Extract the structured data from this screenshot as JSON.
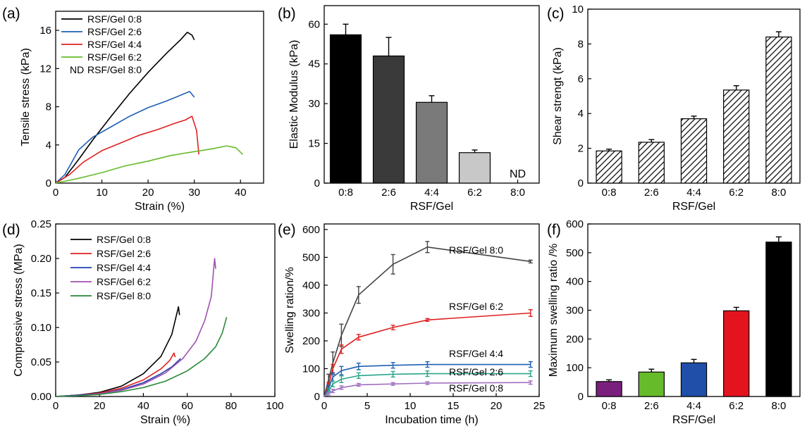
{
  "chart_data": [
    {
      "panel": "(a)",
      "type": "line",
      "xlabel": "Strain (%)",
      "ylabel": "Tensile stress (kPa)",
      "xlim": [
        0,
        45
      ],
      "ylim": [
        0,
        18
      ],
      "xticks": [
        0,
        10,
        20,
        30,
        40
      ],
      "yticks": [
        0,
        4,
        8,
        12,
        16
      ],
      "legend_position": "top-left",
      "nd_note": {
        "marker": "ND",
        "label": "RSF/Gel 8:0"
      },
      "series": [
        {
          "name": "RSF/Gel 0:8",
          "color": "#000000",
          "x": [
            0,
            2,
            5,
            8,
            12,
            16,
            20,
            24,
            27,
            28.5,
            29.5,
            30
          ],
          "y": [
            0,
            0.6,
            2.5,
            4.5,
            7.0,
            9.4,
            11.6,
            13.6,
            15.0,
            15.8,
            15.5,
            15.0
          ]
        },
        {
          "name": "RSF/Gel 2:6",
          "color": "#1f5fb5",
          "x": [
            0,
            2,
            5,
            8,
            12,
            16,
            20,
            24,
            27,
            29,
            30
          ],
          "y": [
            0,
            0.9,
            3.5,
            4.8,
            5.9,
            7.0,
            7.9,
            8.6,
            9.2,
            9.6,
            9.0
          ]
        },
        {
          "name": "RSF/Gel 4:4",
          "color": "#e02020",
          "x": [
            0,
            3,
            6,
            10,
            14,
            18,
            22,
            26,
            28,
            29.5,
            30.5,
            31
          ],
          "y": [
            0,
            0.9,
            2.2,
            3.4,
            4.2,
            5.0,
            5.6,
            6.3,
            6.6,
            7.0,
            5.5,
            3.0
          ]
        },
        {
          "name": "RSF/Gel 6:2",
          "color": "#66bb2a",
          "x": [
            0,
            5,
            10,
            15,
            20,
            25,
            30,
            34,
            37,
            39,
            40.5
          ],
          "y": [
            0,
            0.5,
            1.1,
            1.8,
            2.3,
            2.9,
            3.3,
            3.6,
            3.9,
            3.7,
            3.0
          ]
        }
      ]
    },
    {
      "panel": "(b)",
      "type": "bar",
      "xlabel": "RSF/Gel",
      "ylabel": "Elastic Modulus (kPa)",
      "ylim": [
        0,
        67
      ],
      "yticks": [
        0,
        15,
        30,
        45,
        60
      ],
      "categories": [
        "0:8",
        "2:6",
        "4:4",
        "6:2",
        "8:0"
      ],
      "values": [
        56,
        48,
        30.5,
        11.5,
        null
      ],
      "errors": [
        4,
        7,
        2.5,
        1,
        null
      ],
      "bar_colors": [
        "#000000",
        "#3a3a3a",
        "#7a7a7a",
        "#c8c8c8",
        "#ffffff"
      ],
      "annotations": [
        {
          "category": "8:0",
          "text": "ND"
        }
      ]
    },
    {
      "panel": "(c)",
      "type": "bar",
      "xlabel": "RSF/Gel",
      "ylabel": "Shear strengt (kPa)",
      "ylim": [
        0,
        10
      ],
      "yticks": [
        0,
        2,
        4,
        6,
        8,
        10
      ],
      "categories": [
        "0:8",
        "2:6",
        "4:4",
        "6:2",
        "8:0"
      ],
      "values": [
        1.85,
        2.35,
        3.7,
        5.35,
        8.4
      ],
      "errors": [
        0.1,
        0.15,
        0.15,
        0.25,
        0.3
      ],
      "fill": "hatched"
    },
    {
      "panel": "(d)",
      "type": "line",
      "xlabel": "Strain (%)",
      "ylabel": "Compressive stress (MPa)",
      "xlim": [
        0,
        100
      ],
      "ylim": [
        0,
        0.25
      ],
      "xticks": [
        0,
        20,
        40,
        60,
        80,
        100
      ],
      "yticks": [
        0,
        0.05,
        0.1,
        0.15,
        0.2,
        0.25
      ],
      "ytick_labels": [
        "0.00",
        "0.05",
        "0.10",
        "0.15",
        "0.20",
        "0.25"
      ],
      "legend_position": "top-left",
      "series": [
        {
          "name": "RSF/Gel 0:8",
          "color": "#000000",
          "x": [
            0,
            10,
            20,
            30,
            40,
            48,
            53,
            56,
            56.5
          ],
          "y": [
            0,
            0.002,
            0.006,
            0.015,
            0.033,
            0.058,
            0.09,
            0.13,
            0.118
          ]
        },
        {
          "name": "RSF/Gel 2:6",
          "color": "#e02020",
          "x": [
            0,
            10,
            20,
            30,
            40,
            48,
            52,
            54,
            54.5
          ],
          "y": [
            0,
            0.002,
            0.005,
            0.012,
            0.024,
            0.04,
            0.052,
            0.063,
            0.057
          ]
        },
        {
          "name": "RSF/Gel 4:4",
          "color": "#1f3fb0",
          "x": [
            0,
            10,
            20,
            30,
            40,
            48,
            53,
            57
          ],
          "y": [
            0,
            0.002,
            0.004,
            0.01,
            0.02,
            0.033,
            0.043,
            0.055
          ]
        },
        {
          "name": "RSF/Gel 6:2",
          "color": "#a050b0",
          "x": [
            0,
            10,
            20,
            30,
            40,
            50,
            58,
            64,
            68,
            71,
            72.5,
            73
          ],
          "y": [
            0,
            0.001,
            0.004,
            0.009,
            0.018,
            0.034,
            0.055,
            0.08,
            0.11,
            0.145,
            0.2,
            0.185
          ]
        },
        {
          "name": "RSF/Gel 8:0",
          "color": "#2a8a3a",
          "x": [
            0,
            10,
            20,
            30,
            40,
            50,
            60,
            68,
            73,
            76,
            78
          ],
          "y": [
            0,
            0.001,
            0.003,
            0.007,
            0.013,
            0.022,
            0.037,
            0.055,
            0.072,
            0.092,
            0.115
          ]
        }
      ]
    },
    {
      "panel": "(e)",
      "type": "line",
      "xlabel": "Incubation time (h)",
      "ylabel": "Swelling ration/%",
      "xlim": [
        0,
        25
      ],
      "ylim": [
        0,
        620
      ],
      "xticks": [
        0,
        5,
        10,
        15,
        20,
        25
      ],
      "yticks": [
        0,
        100,
        200,
        300,
        400,
        500,
        600
      ],
      "series": [
        {
          "name": "RSF/Gel  8:0",
          "color": "#444444",
          "x": [
            0,
            0.5,
            1,
            2,
            4,
            8,
            12,
            24
          ],
          "y": [
            0,
            60,
            120,
            220,
            365,
            475,
            537,
            485
          ],
          "err": [
            0,
            20,
            40,
            40,
            30,
            35,
            20,
            5
          ]
        },
        {
          "name": "RSF/Gel  6:2",
          "color": "#e02020",
          "x": [
            0,
            0.5,
            1,
            2,
            4,
            8,
            12,
            24
          ],
          "y": [
            0,
            40,
            100,
            170,
            213,
            248,
            275,
            300
          ],
          "err": [
            0,
            10,
            15,
            15,
            10,
            8,
            5,
            12
          ]
        },
        {
          "name": "RSF/Gel  4:4",
          "color": "#1f5fb5",
          "x": [
            0,
            0.5,
            1,
            2,
            4,
            8,
            12,
            24
          ],
          "y": [
            0,
            30,
            70,
            93,
            108,
            112,
            115,
            115
          ],
          "err": [
            0,
            10,
            15,
            15,
            12,
            10,
            10,
            10
          ]
        },
        {
          "name": "RSF/Gel  2:6",
          "color": "#2aa58a",
          "x": [
            0,
            0.5,
            1,
            2,
            4,
            8,
            12,
            24
          ],
          "y": [
            0,
            20,
            45,
            62,
            75,
            80,
            82,
            82
          ],
          "err": [
            0,
            8,
            10,
            12,
            10,
            10,
            10,
            10
          ]
        },
        {
          "name": "RSF/Gel  0:8",
          "color": "#a070c0",
          "x": [
            0,
            0.5,
            1,
            2,
            4,
            8,
            12,
            24
          ],
          "y": [
            0,
            10,
            20,
            32,
            42,
            45,
            48,
            50
          ],
          "err": [
            0,
            5,
            6,
            6,
            5,
            5,
            5,
            6
          ]
        }
      ]
    },
    {
      "panel": "(f)",
      "type": "bar",
      "xlabel": "RSF/Gel",
      "ylabel": "Maximum swelling ratio /%",
      "ylim": [
        0,
        600
      ],
      "yticks": [
        0,
        100,
        200,
        300,
        400,
        500,
        600
      ],
      "categories": [
        "0:8",
        "2:6",
        "4:4",
        "6:2",
        "8:0"
      ],
      "values": [
        52,
        85,
        117,
        298,
        537
      ],
      "errors": [
        6,
        10,
        12,
        12,
        18
      ],
      "bar_colors": [
        "#7b1f7e",
        "#66bb2a",
        "#1f4fa8",
        "#e3141e",
        "#000000"
      ]
    }
  ]
}
